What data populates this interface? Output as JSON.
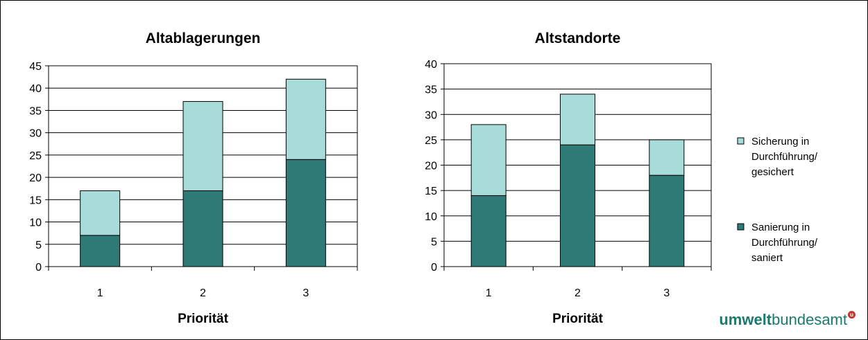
{
  "chart_data": [
    {
      "type": "bar",
      "stacked": true,
      "title": "Altablagerungen",
      "xlabel": "Priorität",
      "ylabel": "",
      "categories": [
        "1",
        "2",
        "3"
      ],
      "series": [
        {
          "name": "Sanierung in Durchführung/ saniert",
          "values": [
            7,
            17,
            24
          ],
          "color": "#2e7a76"
        },
        {
          "name": "Sicherung in Durchführung/ gesichert",
          "values": [
            10,
            20,
            18
          ],
          "color": "#a8dcda"
        }
      ],
      "ylim": [
        0,
        45
      ],
      "yticks": [
        0,
        5,
        10,
        15,
        20,
        25,
        30,
        35,
        40,
        45
      ],
      "grid": true
    },
    {
      "type": "bar",
      "stacked": true,
      "title": "Altstandorte",
      "xlabel": "Priorität",
      "ylabel": "",
      "categories": [
        "1",
        "2",
        "3"
      ],
      "series": [
        {
          "name": "Sanierung in Durchführung/ saniert",
          "values": [
            14,
            24,
            18
          ],
          "color": "#2e7a76"
        },
        {
          "name": "Sicherung in Durchführung/ gesichert",
          "values": [
            14,
            10,
            7
          ],
          "color": "#a8dcda"
        }
      ],
      "ylim": [
        0,
        40
      ],
      "yticks": [
        0,
        5,
        10,
        15,
        20,
        25,
        30,
        35,
        40
      ],
      "grid": true
    }
  ],
  "legend": {
    "placement": "right",
    "items": [
      {
        "lines": [
          "Sicherung in",
          "Durchführung/",
          "gesichert"
        ],
        "color": "#a8dcda"
      },
      {
        "lines": [
          "Sanierung in",
          "Durchführung/",
          "saniert"
        ],
        "color": "#2e7a76"
      }
    ]
  },
  "logo": {
    "bold": "umwelt",
    "regular": "bundesamt",
    "mark": "u"
  }
}
